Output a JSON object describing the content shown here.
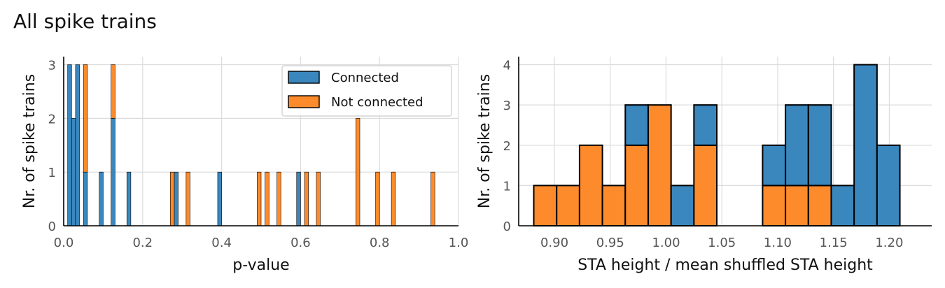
{
  "figure": {
    "title": "All spike trains"
  },
  "colors": {
    "connected": "#3a87bd",
    "not_connected": "#fd8a2b",
    "grid": "#dcdcdc",
    "edge": "#000000"
  },
  "chart_data": [
    {
      "type": "histogram-stacked",
      "xlabel": "p-value",
      "ylabel": "Nr. of spike trains",
      "xlim": [
        0.0,
        1.0
      ],
      "ylim": [
        0,
        3.15
      ],
      "xticks": [
        0.0,
        0.2,
        0.4,
        0.6,
        0.8,
        1.0
      ],
      "xtick_labels": [
        "0.0",
        "0.2",
        "0.4",
        "0.6",
        "0.8",
        "1.0"
      ],
      "yticks": [
        0,
        1,
        2,
        3
      ],
      "ytick_labels": [
        "0",
        "1",
        "2",
        "3"
      ],
      "grid": true,
      "legend": {
        "placement": "top-right",
        "entries": [
          "Connected",
          "Not connected"
        ]
      },
      "bin_width": 0.01,
      "series": [
        {
          "name": "Connected",
          "bins": [
            {
              "x": 0.01,
              "y": 3
            },
            {
              "x": 0.02,
              "y": 2
            },
            {
              "x": 0.03,
              "y": 3
            },
            {
              "x": 0.05,
              "y": 1
            },
            {
              "x": 0.09,
              "y": 1
            },
            {
              "x": 0.12,
              "y": 2
            },
            {
              "x": 0.16,
              "y": 1
            },
            {
              "x": 0.28,
              "y": 1
            },
            {
              "x": 0.39,
              "y": 1
            },
            {
              "x": 0.59,
              "y": 1
            }
          ]
        },
        {
          "name": "Not connected",
          "bins": [
            {
              "x": 0.05,
              "y": 2
            },
            {
              "x": 0.12,
              "y": 1
            },
            {
              "x": 0.27,
              "y": 1
            },
            {
              "x": 0.31,
              "y": 1
            },
            {
              "x": 0.49,
              "y": 1
            },
            {
              "x": 0.51,
              "y": 1
            },
            {
              "x": 0.54,
              "y": 1
            },
            {
              "x": 0.61,
              "y": 1
            },
            {
              "x": 0.64,
              "y": 1
            },
            {
              "x": 0.74,
              "y": 2
            },
            {
              "x": 0.79,
              "y": 1
            },
            {
              "x": 0.83,
              "y": 1
            },
            {
              "x": 0.93,
              "y": 1
            }
          ]
        }
      ]
    },
    {
      "type": "histogram-stacked",
      "xlabel": "STA height / mean shuffled STA height",
      "ylabel": "Nr. of spike trains",
      "xlim": [
        0.868,
        1.238
      ],
      "ylim": [
        0,
        4.2
      ],
      "xticks": [
        0.9,
        0.95,
        1.0,
        1.05,
        1.1,
        1.15,
        1.2
      ],
      "xtick_labels": [
        "0.90",
        "0.95",
        "1.00",
        "1.05",
        "1.10",
        "1.15",
        "1.20"
      ],
      "yticks": [
        0,
        1,
        2,
        3,
        4
      ],
      "ytick_labels": [
        "0",
        "1",
        "2",
        "3",
        "4"
      ],
      "grid": true,
      "bin_start": 0.8815,
      "bin_width": 0.0205,
      "series": [
        {
          "name": "Not connected",
          "counts": [
            1,
            1,
            2,
            1,
            2,
            3,
            0,
            2,
            0,
            0,
            1,
            1,
            1,
            0,
            0,
            0
          ]
        },
        {
          "name": "Connected",
          "counts": [
            0,
            0,
            0,
            0,
            1,
            0,
            1,
            1,
            0,
            0,
            1,
            2,
            2,
            1,
            4,
            2
          ]
        }
      ]
    }
  ]
}
